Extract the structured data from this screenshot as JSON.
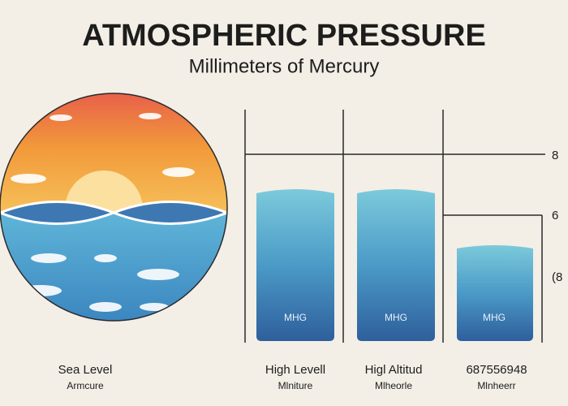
{
  "header": {
    "title": "ATMOSPHERIC PRESSURE",
    "subtitle": "Millimeters of Mercury"
  },
  "sea_level": {
    "label": "Sea Level",
    "sublabel": "Armcure"
  },
  "columns": [
    {
      "label": "High Levell",
      "sublabel": "Mlniture",
      "bar_label": "MHG"
    },
    {
      "label": "Higl Altitud",
      "sublabel": "Mlheorle",
      "bar_label": "MHG"
    },
    {
      "label": "687556948",
      "sublabel": "Mlnheerr",
      "bar_label": "MHG"
    }
  ],
  "axis_labels": [
    "8",
    "6",
    "(8"
  ]
}
